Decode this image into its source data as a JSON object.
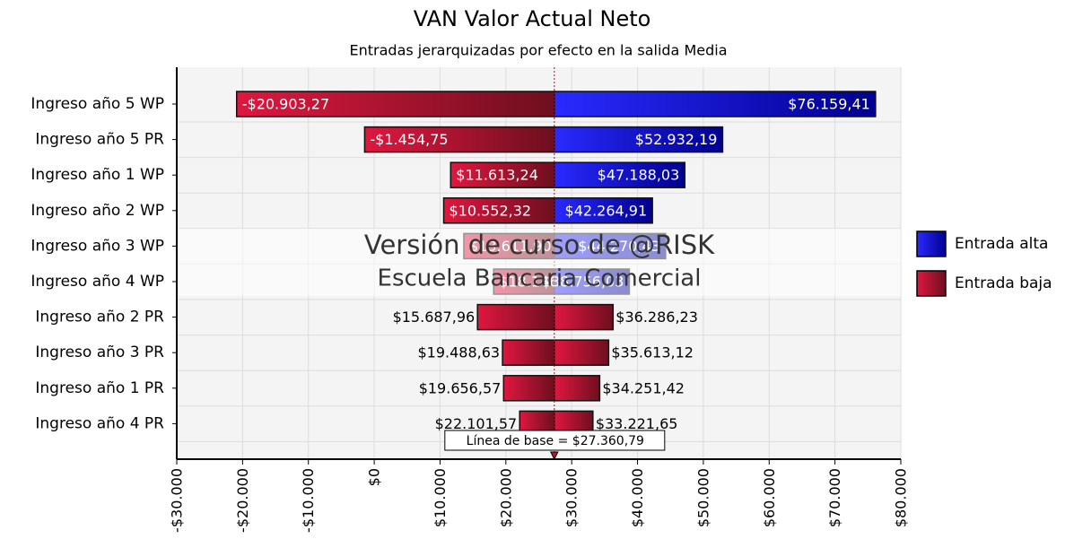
{
  "chart_data": {
    "type": "tornado",
    "title": "VAN Valor Actual Neto",
    "subtitle": "Entradas jerarquizadas por efecto en la salida Media",
    "categories": [
      "Ingreso año 5 WP",
      "Ingreso año 5 PR",
      "Ingreso año 1 WP",
      "Ingreso año 2 WP",
      "Ingreso año 3 WP",
      "Ingreso año 4 WP",
      "Ingreso año 2 PR",
      "Ingreso año 3 PR",
      "Ingreso año 1 PR",
      "Ingreso año 4 PR"
    ],
    "series": [
      {
        "name": "Entrada baja",
        "color": "#c8102e",
        "values": [
          -20903.27,
          -1454.75,
          11613.24,
          10552.32,
          13611.9,
          18146.21,
          15687.96,
          19488.63,
          19656.57,
          22101.57
        ],
        "value_labels": [
          "-$20.903,27",
          "-$1.454,75",
          "$11.613,24",
          "$10.552,32",
          "$13.611,90",
          "$18.146,21",
          "$15.687,96",
          "$19.488,63",
          "$19.656,57",
          "$22.101,57"
        ],
        "colors": [
          "#c8102e",
          "#c8102e",
          "#c8102e",
          "#c8102e",
          "#c8102e",
          "#c8102e",
          "#c8102e",
          "#c8102e",
          "#c8102e",
          "#c8102e"
        ]
      },
      {
        "name": "Entrada alta",
        "color": "#0000e0",
        "values": [
          76159.41,
          52932.19,
          47188.03,
          42264.91,
          44270.43,
          38756.03,
          36286.23,
          35613.12,
          34251.42,
          33221.65
        ],
        "value_labels": [
          "$76.159,41",
          "$52.932,19",
          "$47.188,03",
          "$42.264,91",
          "$44.270,43",
          "$38.756,03",
          "$36.286,23",
          "$35.613,12",
          "$34.251,42",
          "$33.221,65"
        ],
        "colors": [
          "#0000e0",
          "#0000e0",
          "#0000e0",
          "#0000e0",
          "#0000e0",
          "#0000e0",
          "#c8102e",
          "#c8102e",
          "#c8102e",
          "#c8102e"
        ]
      }
    ],
    "baseline": 27360.79,
    "baseline_label": "Línea de base = $27.360,79",
    "watermark": [
      "Versión de curso de @RISK",
      "Escuela Bancaria Comercial"
    ],
    "xlim": [
      -30000,
      80000
    ],
    "xticks": [
      {
        "value": -30000,
        "label": "-$30.000"
      },
      {
        "value": -20000,
        "label": "-$20.000"
      },
      {
        "value": -10000,
        "label": "-$10.000"
      },
      {
        "value": 0,
        "label": "$0"
      },
      {
        "value": 10000,
        "label": "$10.000"
      },
      {
        "value": 20000,
        "label": "$20.000"
      },
      {
        "value": 30000,
        "label": "$30.000"
      },
      {
        "value": 40000,
        "label": "$40.000"
      },
      {
        "value": 50000,
        "label": "$50.000"
      },
      {
        "value": 60000,
        "label": "$60.000"
      },
      {
        "value": 70000,
        "label": "$70.000"
      },
      {
        "value": 80000,
        "label": "$80.000"
      }
    ],
    "grid": true,
    "legend": "right"
  }
}
